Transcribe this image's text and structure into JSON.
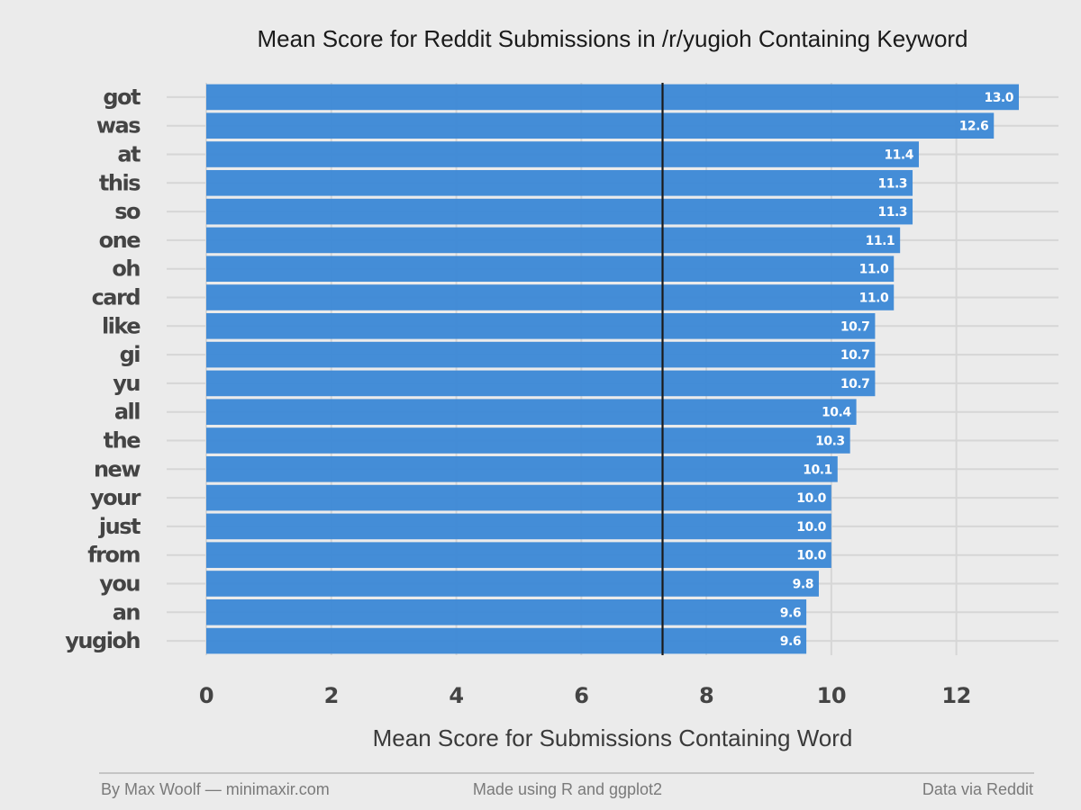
{
  "chart_data": {
    "type": "bar",
    "orientation": "horizontal",
    "title": "Mean Score for Reddit Submissions in /r/yugioh Containing Keyword",
    "xlabel": "Mean Score for Submissions Containing Word",
    "ylabel": "",
    "categories": [
      "got",
      "was",
      "at",
      "this",
      "so",
      "one",
      "oh",
      "card",
      "like",
      "gi",
      "yu",
      "all",
      "the",
      "new",
      "your",
      "just",
      "from",
      "you",
      "an",
      "yugioh"
    ],
    "values": [
      13.0,
      12.6,
      11.4,
      11.3,
      11.3,
      11.1,
      11.0,
      11.0,
      10.7,
      10.7,
      10.7,
      10.4,
      10.3,
      10.1,
      10.0,
      10.0,
      10.0,
      9.8,
      9.6,
      9.6
    ],
    "value_labels": [
      "13.0",
      "12.6",
      "11.4",
      "11.3",
      "11.3",
      "11.1",
      "11.0",
      "11.0",
      "10.7",
      "10.7",
      "10.7",
      "10.4",
      "10.3",
      "10.1",
      "10.0",
      "10.0",
      "10.0",
      "9.8",
      "9.6",
      "9.6"
    ],
    "xlim": [
      0,
      13.0
    ],
    "xticks": [
      0,
      2,
      4,
      6,
      8,
      10,
      12
    ],
    "reference_line": 7.3,
    "grid": true,
    "bar_color": "#3b88d6",
    "reference_line_color": "#1a1a1a"
  },
  "footer": {
    "left": "By Max Woolf — minimaxir.com",
    "center": "Made using R and ggplot2",
    "right": "Data via Reddit"
  }
}
